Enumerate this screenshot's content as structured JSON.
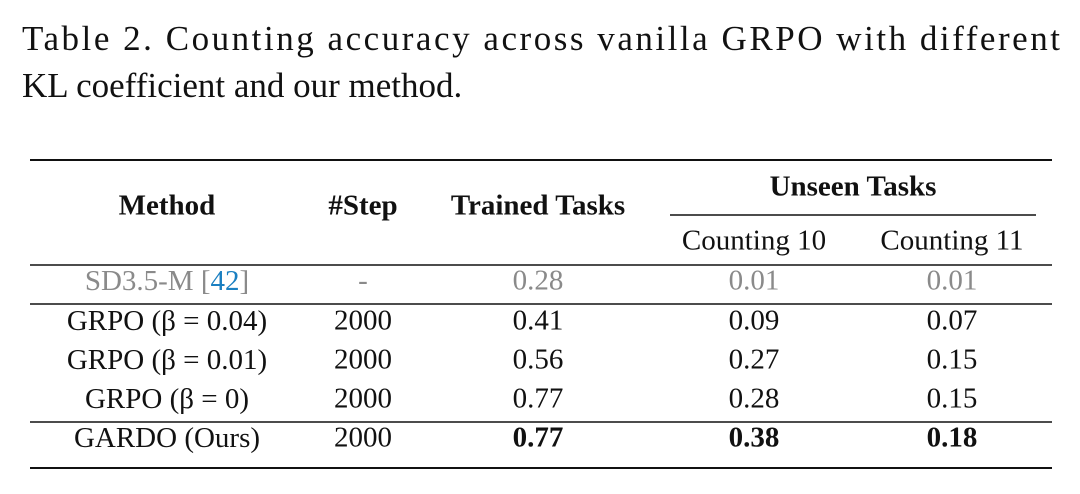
{
  "caption": {
    "lines": [
      "Table 2.  Counting accuracy across vanilla GRPO with different",
      "KL coefficient and our method."
    ]
  },
  "table": {
    "header": {
      "method": "Method",
      "step": "#Step",
      "trained": "Trained Tasks",
      "unseen": "Unseen Tasks",
      "sub": [
        "Counting 10",
        "Counting 11"
      ]
    },
    "rows": [
      {
        "cells": [
          [
            "SD3.5-M [",
            "42",
            "]"
          ],
          "-",
          0.28,
          0.01,
          0.01
        ],
        "color": "#8a8a8a",
        "cite_color": "#1a7fc1"
      },
      {
        "cells": [
          [
            "GRPO (β = 0.04)"
          ],
          2000,
          0.41,
          0.09,
          0.07
        ]
      },
      {
        "cells": [
          [
            "GRPO (β = 0.01)"
          ],
          2000,
          0.56,
          0.27,
          0.15
        ]
      },
      {
        "cells": [
          [
            "GRPO (β = 0)"
          ],
          2000,
          0.77,
          0.28,
          0.15
        ]
      },
      {
        "cells": [
          [
            "GARDO (Ours)"
          ],
          2000,
          0.77,
          0.38,
          0.18
        ],
        "bold": [
          2,
          3,
          4
        ],
        "rule_above": true
      }
    ]
  }
}
